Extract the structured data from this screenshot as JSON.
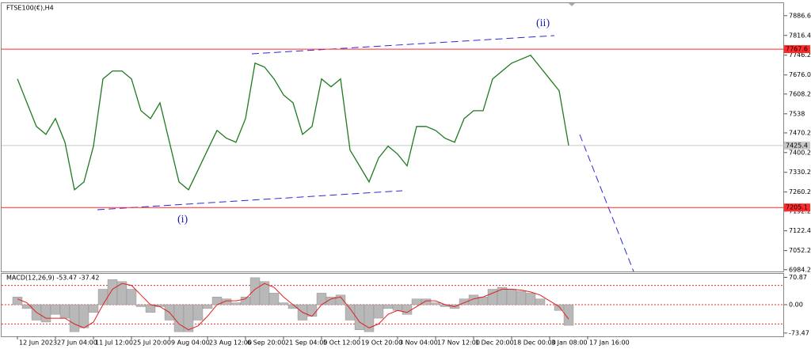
{
  "chart_data": [
    {
      "type": "line",
      "title": "FTSE100(€),H4",
      "categories": [
        "12 Jun 2023",
        null,
        null,
        null,
        "27 Jun 04:00",
        null,
        null,
        null,
        "11 Jul 12:00",
        null,
        null,
        null,
        "25 Jul 20:00",
        null,
        null,
        null,
        "9 Aug 04:00",
        null,
        null,
        null,
        "23 Aug 12:00",
        null,
        null,
        null,
        "6 Sep 20:00",
        null,
        null,
        null,
        "21 Sep 04:00",
        null,
        null,
        null,
        "5 Oct 12:00",
        null,
        null,
        null,
        "19 Oct 20:00",
        null,
        null,
        null,
        "3 Nov 04:00",
        null,
        null,
        null,
        "17 Nov 12:00",
        null,
        null,
        null,
        "1 Dec 20:00",
        null,
        null,
        null,
        "18 Dec 00:00",
        null,
        null,
        null,
        "3 Jan 08:00",
        null,
        null,
        null,
        "17 Jan 16:00"
      ],
      "values": [
        7662,
        7577,
        7493,
        7465,
        7521,
        7437,
        7268,
        7296,
        7423,
        7662,
        7690,
        7690,
        7662,
        7549,
        7521,
        7577,
        7437,
        7296,
        7268,
        7338,
        7409,
        7479,
        7451,
        7437,
        7521,
        7718,
        7704,
        7662,
        7605,
        7577,
        7465,
        7493,
        7662,
        7634,
        7662,
        7409,
        7353,
        7296,
        7381,
        7423,
        7395,
        7353,
        7493,
        7493,
        7479,
        7451,
        7437,
        7521,
        7549,
        7549,
        7662,
        7690,
        7718,
        7732,
        7746,
        7704,
        7662,
        7620,
        7425.4,
        null,
        null
      ],
      "color": "#1f7a1f",
      "ylim": [
        6978,
        7931
      ],
      "yticks": [
        7886.6,
        7816.4,
        7746.2,
        {
          "value": 7676,
          "label": "7676.0"
        },
        7608.2,
        7538.0,
        7470.2,
        7400.2,
        7330.2,
        7260.2,
        7192.2,
        7122.4,
        7052.2,
        6984.2
      ],
      "levels": [
        {
          "value": 7767.6,
          "color": "#ff2a2a"
        },
        {
          "value": 7205.1,
          "color": "#ff2a2a"
        },
        {
          "value": 7425.4,
          "color": "#c8c8c8"
        }
      ],
      "annotations": [
        "(i)",
        "(ii)"
      ]
    },
    {
      "type": "macd",
      "title": "MACD(12,26,9) -53.47 -37.42",
      "series": [
        {
          "color": "#b8b8b8",
          "values": [
            20,
            -10,
            -40,
            -45,
            -25,
            -35,
            -70,
            -60,
            -20,
            40,
            65,
            60,
            40,
            -5,
            -20,
            -5,
            -40,
            -70,
            -70,
            -40,
            -10,
            20,
            15,
            5,
            20,
            70,
            60,
            30,
            5,
            -10,
            -40,
            -30,
            30,
            20,
            25,
            -40,
            -65,
            -70,
            -35,
            -10,
            -15,
            -25,
            15,
            15,
            5,
            -5,
            -10,
            15,
            25,
            20,
            40,
            45,
            40,
            35,
            30,
            15,
            0,
            -15,
            -53.47,
            null,
            null
          ]
        },
        {
          "color": "#e02020",
          "values": [
            15,
            5,
            -20,
            -35,
            -35,
            -35,
            -50,
            -60,
            -45,
            0,
            40,
            55,
            50,
            25,
            0,
            -5,
            -20,
            -50,
            -65,
            -55,
            -30,
            0,
            10,
            10,
            15,
            40,
            55,
            45,
            20,
            0,
            -20,
            -30,
            0,
            15,
            20,
            -10,
            -45,
            -60,
            -50,
            -25,
            -15,
            -20,
            -5,
            10,
            10,
            0,
            -5,
            5,
            15,
            20,
            30,
            40,
            40,
            38,
            33,
            25,
            10,
            -5,
            -37.42,
            null,
            null
          ]
        }
      ],
      "ylim": [
        -82,
        80
      ],
      "yticks": [
        70.87,
        {
          "value": 0,
          "label": "0.00"
        },
        -73.47
      ],
      "levels": [
        50,
        0,
        -50
      ]
    }
  ]
}
